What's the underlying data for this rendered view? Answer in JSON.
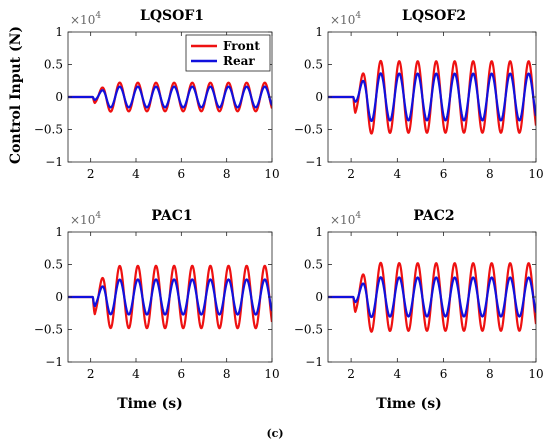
{
  "figure": {
    "caption": "(c)",
    "ylabel": "Control Input (N)",
    "xlabel": "Time (s)"
  },
  "colors": {
    "front": "#ee1111",
    "rear": "#1010dd"
  },
  "chart_data": [
    {
      "type": "line",
      "title": "LQSOF1",
      "multiplier": "×10^4",
      "xlim": [
        1,
        10
      ],
      "ylim": [
        -1,
        1
      ],
      "xticks": [
        2,
        4,
        6,
        8,
        10
      ],
      "yticks": [
        1,
        0.5,
        0,
        -0.5,
        -1
      ],
      "ytick_labels": [
        "1",
        "0.5",
        "0",
        "−0.5",
        "−1"
      ],
      "grid": false,
      "legend": {
        "position": "top-right",
        "entries": [
          "Front",
          "Rear"
        ]
      },
      "series": [
        {
          "name": "Front",
          "onset": 2.1,
          "period": 0.8,
          "amplitude": 0.22,
          "initial_dip": -0.12,
          "peak_first": 0.24
        },
        {
          "name": "Rear",
          "onset": 2.1,
          "period": 0.8,
          "amplitude": 0.16,
          "initial_dip": -0.05,
          "peak_first": 0.16
        }
      ]
    },
    {
      "type": "line",
      "title": "LQSOF2",
      "multiplier": "×10^4",
      "xlim": [
        1,
        10
      ],
      "ylim": [
        -1,
        1
      ],
      "xticks": [
        2,
        4,
        6,
        8,
        10
      ],
      "yticks": [
        1,
        0.5,
        0,
        -0.5,
        -1
      ],
      "ytick_labels": [
        "1",
        "0.5",
        "0",
        "−0.5",
        "−1"
      ],
      "grid": false,
      "series": [
        {
          "name": "Front",
          "onset": 2.1,
          "period": 0.8,
          "amplitude": 0.55,
          "initial_dip": -0.32,
          "peak_first": 0.6
        },
        {
          "name": "Rear",
          "onset": 2.1,
          "period": 0.8,
          "amplitude": 0.36,
          "initial_dip": -0.06,
          "peak_first": 0.4
        }
      ]
    },
    {
      "type": "line",
      "title": "PAC1",
      "multiplier": "×10^4",
      "xlim": [
        1,
        10
      ],
      "ylim": [
        -1,
        1
      ],
      "xticks": [
        2,
        4,
        6,
        8,
        10
      ],
      "yticks": [
        1,
        0.5,
        0,
        -0.5,
        -1
      ],
      "ytick_labels": [
        "1",
        "0.5",
        "0",
        "−0.5",
        "−1"
      ],
      "grid": false,
      "series": [
        {
          "name": "Front",
          "onset": 2.1,
          "period": 0.8,
          "amplitude": 0.48,
          "initial_dip": -0.38,
          "peak_first": 0.46
        },
        {
          "name": "Rear",
          "onset": 2.1,
          "period": 0.8,
          "amplitude": 0.27,
          "initial_dip": -0.2,
          "peak_first": 0.25
        }
      ]
    },
    {
      "type": "line",
      "title": "PAC2",
      "multiplier": "×10^4",
      "xlim": [
        1,
        10
      ],
      "ylim": [
        -1,
        1
      ],
      "xticks": [
        2,
        4,
        6,
        8,
        10
      ],
      "yticks": [
        1,
        0.5,
        0,
        -0.5,
        -1
      ],
      "ytick_labels": [
        "1",
        "0.5",
        "0",
        "−0.5",
        "−1"
      ],
      "grid": false,
      "series": [
        {
          "name": "Front",
          "onset": 2.1,
          "period": 0.8,
          "amplitude": 0.52,
          "initial_dip": -0.3,
          "peak_first": 0.58
        },
        {
          "name": "Rear",
          "onset": 2.1,
          "period": 0.8,
          "amplitude": 0.3,
          "initial_dip": -0.08,
          "peak_first": 0.34
        }
      ]
    }
  ]
}
